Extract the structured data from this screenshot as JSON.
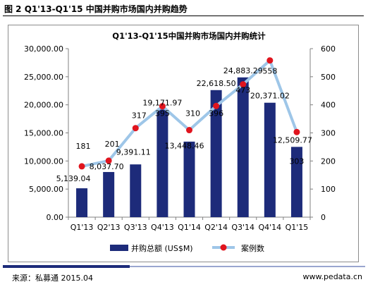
{
  "header": {
    "figure_title": "图 2 Q1'13-Q1'15 中国并购市场国内并购趋势"
  },
  "footer": {
    "source": "来源：私募通 2015.04",
    "website": "www.pedata.cn"
  },
  "chart_data": {
    "type": "bar",
    "title": "Q1'13-Q1'15中国并购市场国内并购统计",
    "categories": [
      "Q1'13",
      "Q2'13",
      "Q3'13",
      "Q4'13",
      "Q1'14",
      "Q2'14",
      "Q3'14",
      "Q4'14",
      "Q1'15"
    ],
    "series": [
      {
        "name": "并购总额 (US$M)",
        "type": "bar",
        "axis": "left",
        "color": "#1d2b7a",
        "values": [
          5139.04,
          8037.7,
          9391.11,
          19171.97,
          13448.46,
          22618.5,
          24883.29,
          20371.02,
          12509.77
        ],
        "labels": [
          "5,139.04",
          "8,037.70",
          "9,391.11",
          "19,171.97",
          "13,448.46",
          "22,618.50",
          "24,883.29",
          "20,371.02",
          "12,509.77"
        ]
      },
      {
        "name": "案例数",
        "type": "line",
        "axis": "right",
        "line_color": "#9ec6e8",
        "marker_color": "#e0141e",
        "values": [
          181,
          201,
          317,
          395,
          310,
          396,
          473,
          558,
          303
        ],
        "labels": [
          "181",
          "201",
          "317",
          "395",
          "310",
          "396",
          "473",
          "558",
          "303"
        ]
      }
    ],
    "y_left": {
      "ylim": [
        0,
        30000
      ],
      "ticks": [
        "0.00",
        "5,000.00",
        "10,000.00",
        "15,000.00",
        "20,000.00",
        "25,000.00",
        "30,000.00"
      ]
    },
    "y_right": {
      "ylim": [
        0,
        600
      ],
      "ticks": [
        "0",
        "100",
        "200",
        "300",
        "400",
        "500",
        "600"
      ]
    },
    "grid": false,
    "legend_position": "bottom"
  }
}
